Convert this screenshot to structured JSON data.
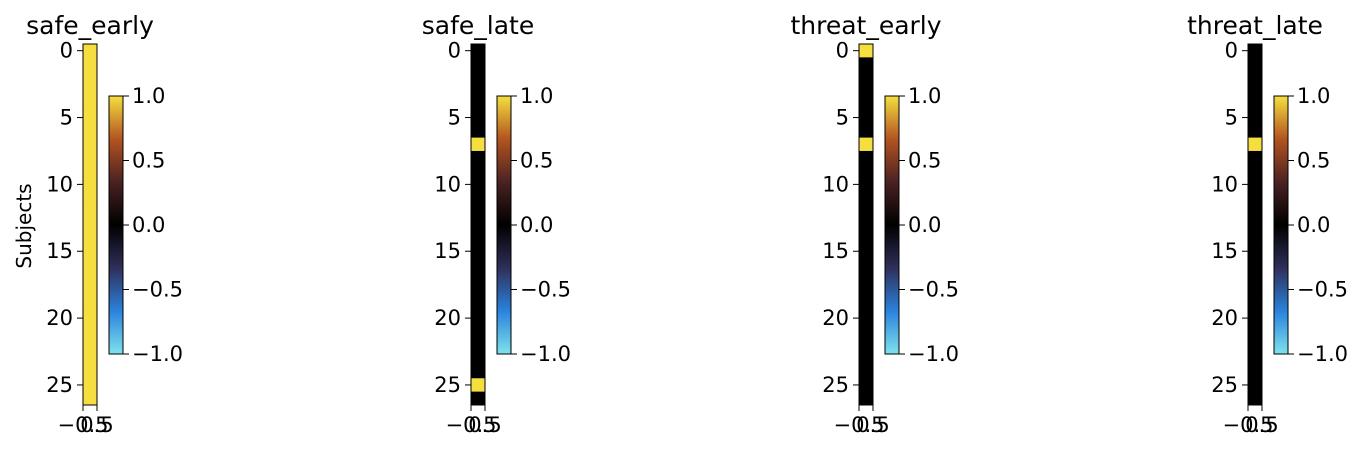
{
  "chart_data": {
    "type": "heatmap",
    "ylabel": "Subjects",
    "ytick_labels": [
      "0",
      "5",
      "10",
      "15",
      "20",
      "25"
    ],
    "ytick_values": [
      0,
      5,
      10,
      15,
      20,
      25
    ],
    "xtick_labels": [
      "−0.5",
      "0.5"
    ],
    "xtick_values": [
      -0.5,
      0.5
    ],
    "colorbar": {
      "range": [
        -1.0,
        1.0
      ],
      "tick_values": [
        1.0,
        0.5,
        0.0,
        -0.5,
        -1.0
      ],
      "tick_labels": [
        "1.0",
        "0.5",
        "0.0",
        "−0.5",
        "−1.0"
      ],
      "colors": [
        "#7fe2ec",
        "#2a82dc",
        "#2f2f5a",
        "#000000",
        "#4a2222",
        "#b35420",
        "#f5df3f"
      ]
    },
    "rows": 27,
    "panels": [
      {
        "title": "safe_early",
        "values": [
          1,
          1,
          1,
          1,
          1,
          1,
          1,
          1,
          1,
          1,
          1,
          1,
          1,
          1,
          1,
          1,
          1,
          1,
          1,
          1,
          1,
          1,
          1,
          1,
          1,
          1,
          1
        ]
      },
      {
        "title": "safe_late",
        "values": [
          0,
          0,
          0,
          0,
          0,
          0,
          0,
          1,
          0,
          0,
          0,
          0,
          0,
          0,
          0,
          0,
          0,
          0,
          0,
          0,
          0,
          0,
          0,
          0,
          0,
          1,
          0
        ]
      },
      {
        "title": "threat_early",
        "values": [
          1,
          0,
          0,
          0,
          0,
          0,
          0,
          1,
          0,
          0,
          0,
          0,
          0,
          0,
          0,
          0,
          0,
          0,
          0,
          0,
          0,
          0,
          0,
          0,
          0,
          0,
          0
        ]
      },
      {
        "title": "threat_late",
        "values": [
          0,
          0,
          0,
          0,
          0,
          0,
          0,
          1,
          0,
          0,
          0,
          0,
          0,
          0,
          0,
          0,
          0,
          0,
          0,
          0,
          0,
          0,
          0,
          0,
          0,
          0,
          0
        ]
      }
    ]
  }
}
